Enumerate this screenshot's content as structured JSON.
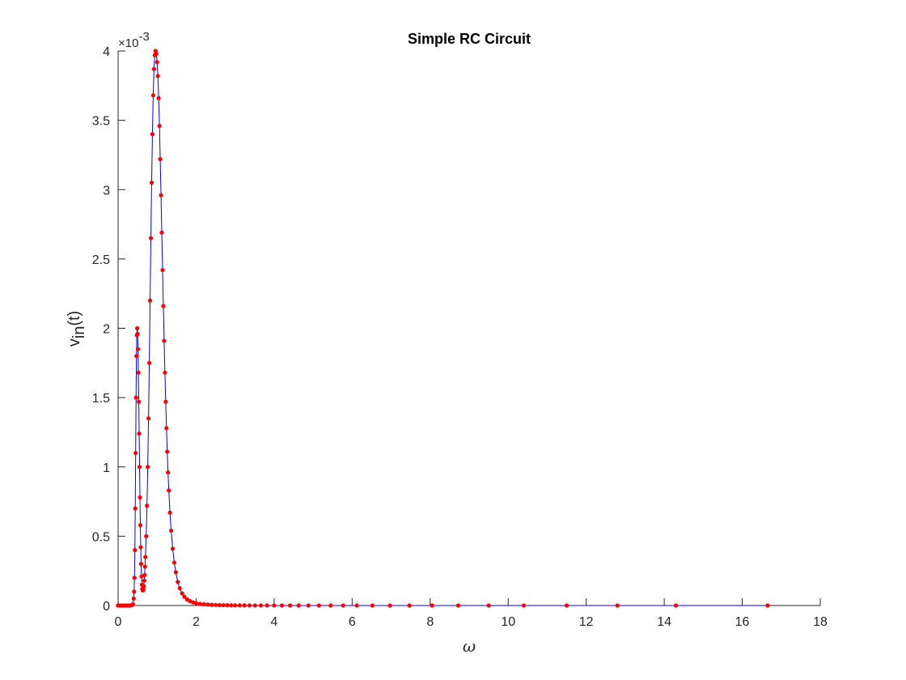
{
  "chart_data": {
    "type": "line",
    "title": "Simple RC Circuit",
    "xlabel": "ω",
    "ylabel": {
      "main": "v",
      "sub": "in",
      "rest": "(t)"
    },
    "y_exponent_label": {
      "base": "×10",
      "power": "-3"
    },
    "xlim": [
      0,
      18
    ],
    "ylim": [
      0,
      4
    ],
    "x_ticks": [
      0,
      2,
      4,
      6,
      8,
      10,
      12,
      14,
      16,
      18
    ],
    "y_ticks": [
      0,
      0.5,
      1,
      1.5,
      2,
      2.5,
      3,
      3.5,
      4
    ],
    "x_tick_labels": [
      "0",
      "2",
      "4",
      "6",
      "8",
      "10",
      "12",
      "14",
      "16",
      "18"
    ],
    "y_tick_labels": [
      "0",
      "0.5",
      "1",
      "1.5",
      "2",
      "2.5",
      "3",
      "3.5",
      "4"
    ],
    "grid": false,
    "series": [
      {
        "line_color": "#0000ff",
        "marker_color": "#ff0000",
        "marker": "dot",
        "x": [
          0.0,
          0.05,
          0.1,
          0.15,
          0.2,
          0.25,
          0.3,
          0.35,
          0.38,
          0.4,
          0.41,
          0.42,
          0.43,
          0.44,
          0.45,
          0.46,
          0.47,
          0.48,
          0.49,
          0.5,
          0.51,
          0.52,
          0.53,
          0.54,
          0.55,
          0.56,
          0.57,
          0.58,
          0.59,
          0.6,
          0.61,
          0.62,
          0.63,
          0.64,
          0.65,
          0.66,
          0.67,
          0.68,
          0.69,
          0.7,
          0.72,
          0.74,
          0.76,
          0.78,
          0.8,
          0.82,
          0.84,
          0.86,
          0.88,
          0.9,
          0.92,
          0.94,
          0.96,
          0.98,
          1.0,
          1.02,
          1.04,
          1.06,
          1.08,
          1.1,
          1.12,
          1.14,
          1.16,
          1.18,
          1.2,
          1.22,
          1.24,
          1.26,
          1.28,
          1.3,
          1.33,
          1.36,
          1.4,
          1.44,
          1.48,
          1.53,
          1.58,
          1.64,
          1.7,
          1.77,
          1.84,
          1.92,
          2.0,
          2.1,
          2.2,
          2.3,
          2.4,
          2.5,
          2.6,
          2.7,
          2.8,
          2.9,
          3.0,
          3.12,
          3.24,
          3.37,
          3.51,
          3.66,
          3.82,
          4.0,
          4.2,
          4.41,
          4.63,
          4.88,
          5.15,
          5.45,
          5.77,
          6.12,
          6.52,
          6.97,
          7.47,
          8.05,
          8.72,
          9.5,
          10.4,
          11.5,
          12.8,
          14.3,
          16.65
        ],
        "y": [
          0.0,
          0.0,
          0.0,
          0.0,
          0.0,
          0.0,
          0.0,
          0.002,
          0.01,
          0.05,
          0.1,
          0.2,
          0.4,
          0.7,
          1.1,
          1.5,
          1.8,
          1.95,
          2.0,
          1.96,
          1.85,
          1.68,
          1.47,
          1.24,
          1.0,
          0.78,
          0.58,
          0.42,
          0.3,
          0.21,
          0.15,
          0.12,
          0.11,
          0.11,
          0.12,
          0.14,
          0.18,
          0.22,
          0.28,
          0.35,
          0.5,
          0.72,
          1.0,
          1.35,
          1.75,
          2.2,
          2.65,
          3.05,
          3.4,
          3.68,
          3.87,
          3.97,
          4.0,
          3.98,
          3.92,
          3.82,
          3.66,
          3.46,
          3.22,
          2.96,
          2.69,
          2.42,
          2.16,
          1.91,
          1.68,
          1.47,
          1.28,
          1.11,
          0.96,
          0.83,
          0.67,
          0.54,
          0.41,
          0.31,
          0.24,
          0.17,
          0.125,
          0.088,
          0.063,
          0.044,
          0.032,
          0.023,
          0.017,
          0.012,
          0.009,
          0.007,
          0.005,
          0.004,
          0.003,
          0.0025,
          0.002,
          0.0015,
          0.0012,
          0.001,
          0.0008,
          0.0006,
          0.0005,
          0.0004,
          0.0003,
          0.0002,
          0.0002,
          0.0001,
          0.0001,
          0.0001,
          0.0,
          0.0,
          0.0,
          0.0,
          0.0,
          0.0,
          0.0,
          0.0,
          0.0,
          0.0,
          0.0,
          0.0,
          0.0,
          0.0,
          0.0
        ]
      }
    ]
  }
}
